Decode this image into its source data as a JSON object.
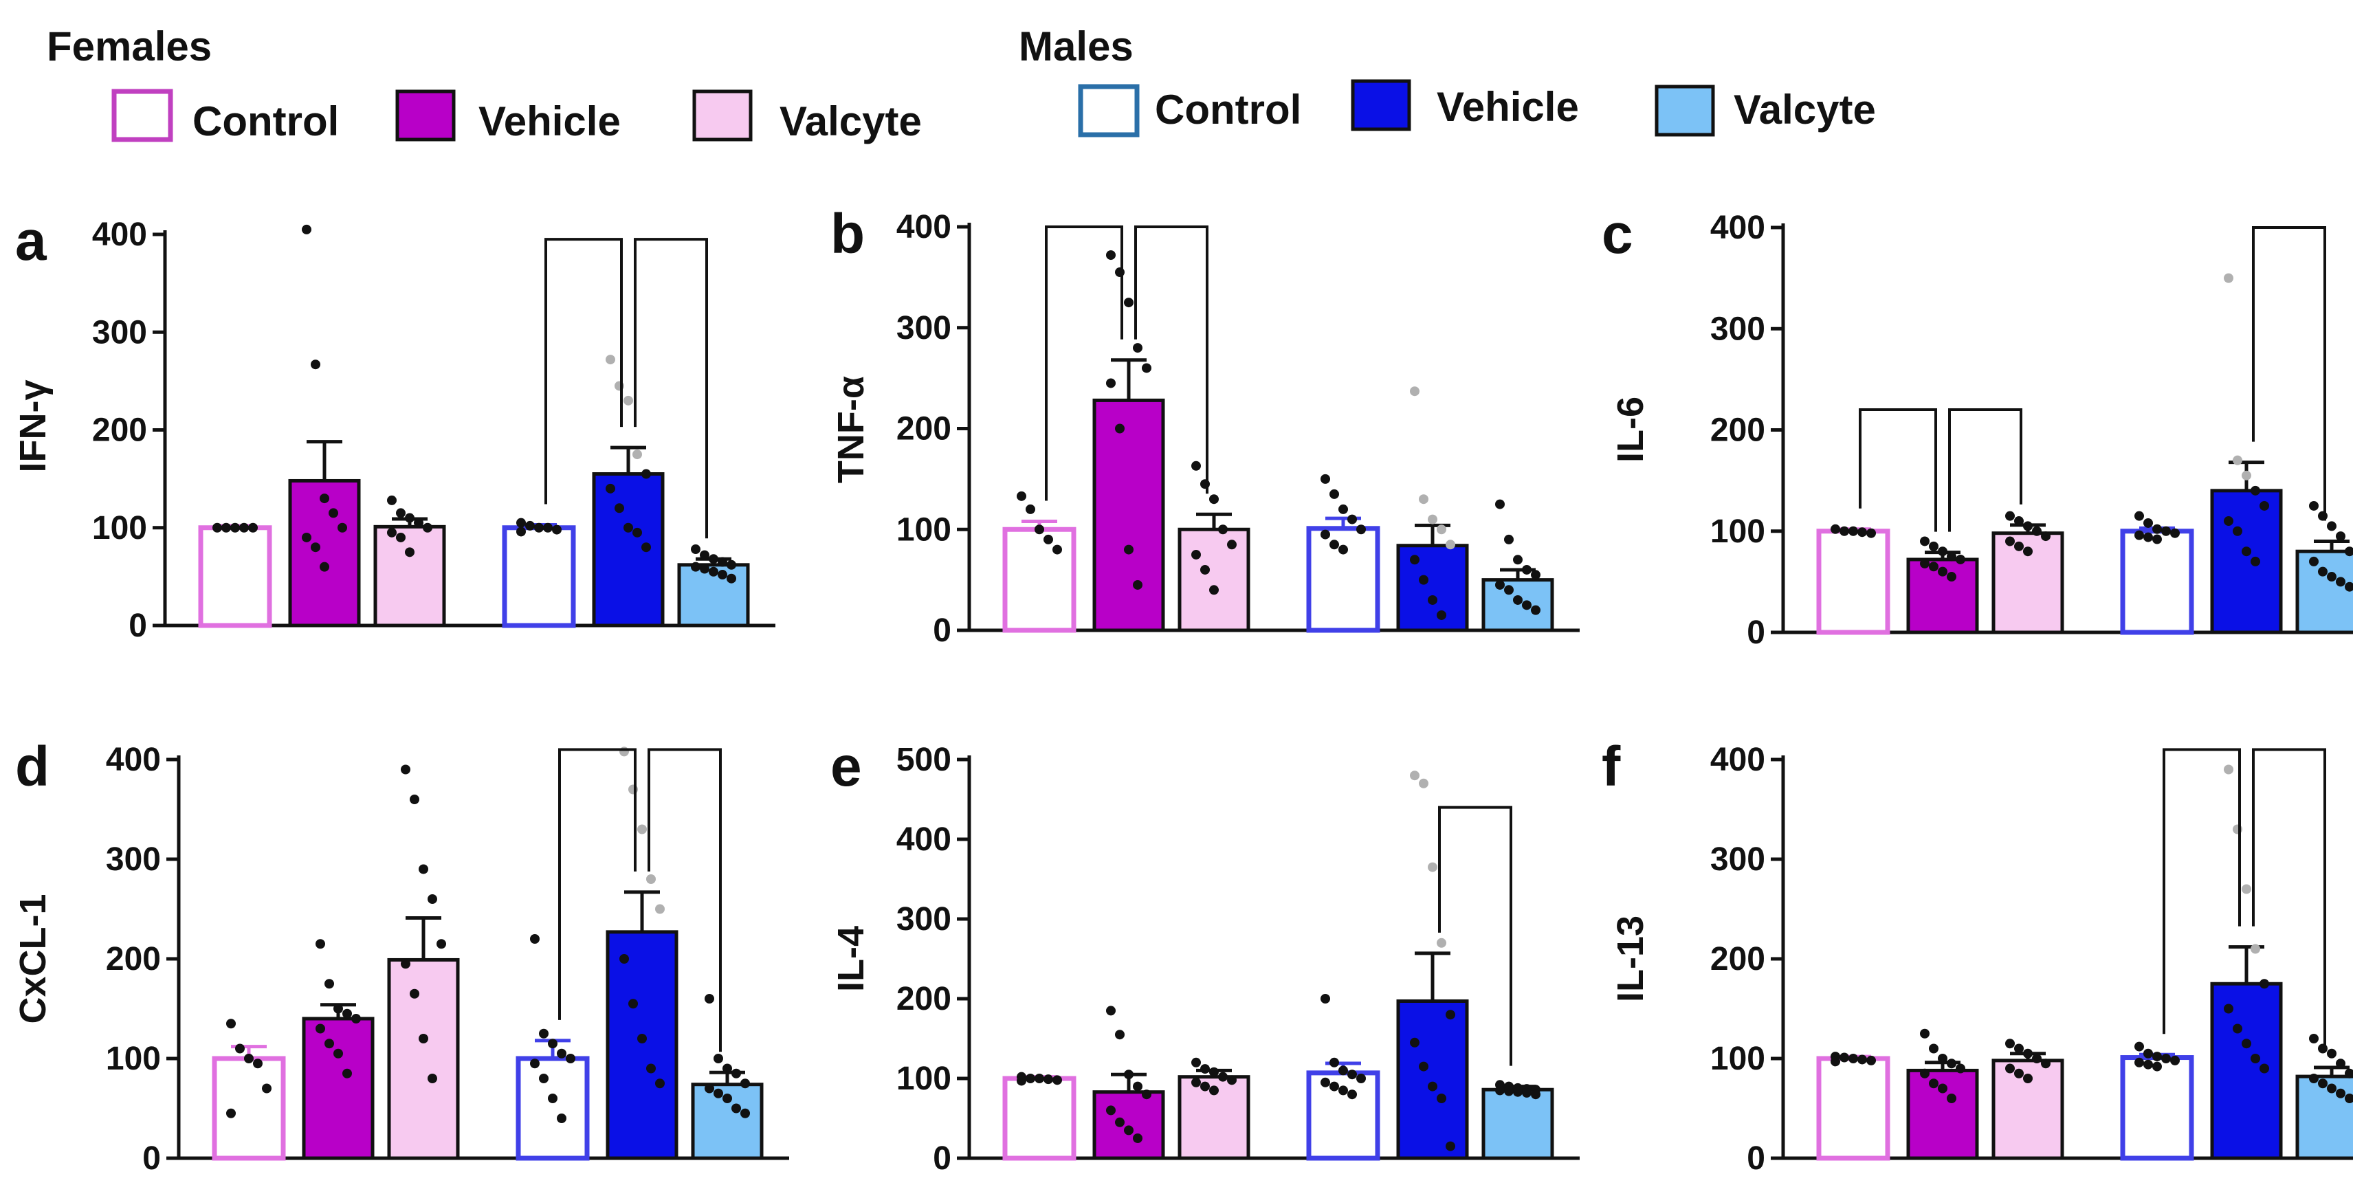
{
  "legend": {
    "females": {
      "title": "Females",
      "items": [
        {
          "label": "Control",
          "fill": "#ffffff",
          "stroke": "#c040c0"
        },
        {
          "label": "Vehicle",
          "fill": "#b800c8",
          "stroke": "#111111"
        },
        {
          "label": "Valcyte",
          "fill": "#f7caf0",
          "stroke": "#111111"
        }
      ]
    },
    "males": {
      "title": "Males",
      "items": [
        {
          "label": "Control",
          "fill": "#ffffff",
          "stroke": "#2a6fa8"
        },
        {
          "label": "Vehicle",
          "fill": "#0a10e6",
          "stroke": "#111111"
        },
        {
          "label": "Valcyte",
          "fill": "#7cc2f6",
          "stroke": "#111111"
        }
      ]
    }
  },
  "chart_data": [
    {
      "type": "bar",
      "panel": "a",
      "ylabel": "IFN-γ",
      "ylim": [
        0,
        400
      ],
      "yticks": [
        "0",
        "100",
        "200",
        "300",
        "400"
      ],
      "groups": [
        "Female Control",
        "Female Vehicle",
        "Female Valcyte",
        "Male Control",
        "Male Vehicle",
        "Male Valcyte"
      ],
      "values": [
        100,
        148,
        101,
        100,
        155,
        62
      ],
      "sem": [
        2,
        40,
        8,
        3,
        27,
        6
      ],
      "points": [
        [
          100,
          100,
          100,
          100,
          100
        ],
        [
          405,
          267,
          130,
          115,
          100,
          90,
          80,
          60
        ],
        [
          128,
          115,
          110,
          105,
          100,
          95,
          90,
          75
        ],
        [
          105,
          102,
          100,
          100,
          98,
          96
        ],
        [
          272,
          245,
          230,
          175,
          155,
          140,
          120,
          100,
          95,
          80
        ],
        [
          78,
          72,
          68,
          65,
          62,
          60,
          58,
          55,
          52,
          48
        ]
      ],
      "brackets": [
        {
          "from": 3,
          "to": 4,
          "y": 395
        },
        {
          "from": 4,
          "to": 5,
          "y": 395
        }
      ]
    },
    {
      "type": "bar",
      "panel": "b",
      "ylabel": "TNF-α",
      "ylim": [
        0,
        400
      ],
      "yticks": [
        "0",
        "100",
        "200",
        "300",
        "400"
      ],
      "groups": [
        "Female Control",
        "Female Vehicle",
        "Female Valcyte",
        "Male Control",
        "Male Vehicle",
        "Male Valcyte"
      ],
      "values": [
        100,
        228,
        100,
        101,
        84,
        50
      ],
      "sem": [
        8,
        40,
        15,
        10,
        20,
        10
      ],
      "points": [
        [
          133,
          120,
          100,
          90,
          80
        ],
        [
          372,
          355,
          325,
          280,
          260,
          245,
          200,
          80,
          45
        ],
        [
          163,
          145,
          130,
          100,
          85,
          75,
          60,
          40
        ],
        [
          150,
          135,
          120,
          110,
          100,
          95,
          85,
          80
        ],
        [
          237,
          130,
          110,
          100,
          85,
          70,
          50,
          30,
          15
        ],
        [
          125,
          90,
          70,
          60,
          55,
          45,
          40,
          30,
          25,
          20
        ]
      ],
      "brackets": [
        {
          "from": 0,
          "to": 1,
          "y": 400
        },
        {
          "from": 1,
          "to": 2,
          "y": 400
        }
      ]
    },
    {
      "type": "bar",
      "panel": "c",
      "ylabel": "IL-6",
      "ylim": [
        0,
        400
      ],
      "yticks": [
        "0",
        "100",
        "200",
        "300",
        "400"
      ],
      "groups": [
        "Female Control",
        "Female Vehicle",
        "Female Valcyte",
        "Male Control",
        "Male Vehicle",
        "Male Valcyte"
      ],
      "values": [
        100,
        72,
        98,
        100,
        140,
        80
      ],
      "sem": [
        2,
        7,
        8,
        3,
        28,
        10
      ],
      "points": [
        [
          102,
          100,
          100,
          99,
          98
        ],
        [
          90,
          85,
          80,
          75,
          72,
          68,
          65,
          60,
          55
        ],
        [
          115,
          110,
          105,
          100,
          95,
          90,
          85,
          80
        ],
        [
          115,
          108,
          102,
          100,
          98,
          96,
          94,
          92
        ],
        [
          350,
          170,
          155,
          140,
          125,
          110,
          100,
          80,
          70
        ],
        [
          125,
          115,
          105,
          95,
          80,
          70,
          60,
          55,
          50,
          45
        ]
      ],
      "brackets": [
        {
          "from": 0,
          "to": 1,
          "y": 220
        },
        {
          "from": 1,
          "to": 2,
          "y": 220
        },
        {
          "from": 4,
          "to": 5,
          "y": 400
        }
      ]
    },
    {
      "type": "bar",
      "panel": "d",
      "ylabel": "CxCL-1",
      "ylim": [
        0,
        400
      ],
      "yticks": [
        "0",
        "100",
        "200",
        "300",
        "400"
      ],
      "groups": [
        "Female Control",
        "Female Vehicle",
        "Female Valcyte",
        "Male Control",
        "Male Vehicle",
        "Male Valcyte"
      ],
      "values": [
        100,
        140,
        199,
        100,
        227,
        74
      ],
      "sem": [
        12,
        14,
        42,
        18,
        40,
        12
      ],
      "points": [
        [
          135,
          110,
          100,
          95,
          70,
          45
        ],
        [
          215,
          175,
          150,
          145,
          140,
          130,
          115,
          105,
          85
        ],
        [
          390,
          360,
          290,
          260,
          215,
          195,
          165,
          120,
          80
        ],
        [
          220,
          125,
          115,
          105,
          100,
          95,
          80,
          60,
          40
        ],
        [
          408,
          370,
          330,
          280,
          250,
          200,
          155,
          120,
          90,
          75
        ],
        [
          160,
          100,
          90,
          85,
          75,
          70,
          65,
          60,
          50,
          45
        ]
      ],
      "brackets": [
        {
          "from": 3,
          "to": 4,
          "y": 410
        },
        {
          "from": 4,
          "to": 5,
          "y": 410
        }
      ]
    },
    {
      "type": "bar",
      "panel": "e",
      "ylabel": "IL-4",
      "ylim": [
        0,
        500
      ],
      "yticks": [
        "0",
        "100",
        "200",
        "300",
        "400",
        "500"
      ],
      "groups": [
        "Female Control",
        "Female Vehicle",
        "Female Valcyte",
        "Male Control",
        "Male Vehicle",
        "Male Valcyte"
      ],
      "values": [
        100,
        83,
        102,
        107,
        197,
        86
      ],
      "sem": [
        2,
        22,
        8,
        12,
        60,
        4
      ],
      "points": [
        [
          102,
          100,
          100,
          99,
          98,
          97
        ],
        [
          185,
          155,
          105,
          90,
          80,
          60,
          45,
          35,
          25
        ],
        [
          120,
          112,
          108,
          102,
          98,
          95,
          90,
          85
        ],
        [
          200,
          120,
          110,
          105,
          100,
          95,
          90,
          85,
          80
        ],
        [
          480,
          470,
          365,
          270,
          180,
          145,
          115,
          90,
          75,
          15
        ],
        [
          92,
          90,
          88,
          87,
          86,
          85,
          84,
          83,
          82,
          80
        ]
      ],
      "brackets": [
        {
          "from": 4,
          "to": 5,
          "y": 440
        }
      ]
    },
    {
      "type": "bar",
      "panel": "f",
      "ylabel": "IL-13",
      "ylim": [
        0,
        400
      ],
      "yticks": [
        "0",
        "100",
        "200",
        "300",
        "400"
      ],
      "groups": [
        "Female Control",
        "Female Vehicle",
        "Female Valcyte",
        "Male Control",
        "Male Vehicle",
        "Male Valcyte"
      ],
      "values": [
        100,
        88,
        98,
        101,
        175,
        82
      ],
      "sem": [
        2,
        8,
        7,
        3,
        37,
        9
      ],
      "points": [
        [
          102,
          101,
          100,
          99,
          98,
          97
        ],
        [
          125,
          110,
          100,
          95,
          90,
          85,
          75,
          70,
          60
        ],
        [
          115,
          110,
          105,
          100,
          95,
          90,
          85,
          80
        ],
        [
          112,
          105,
          102,
          100,
          98,
          96,
          94,
          92
        ],
        [
          390,
          330,
          270,
          210,
          175,
          150,
          130,
          115,
          100,
          90
        ],
        [
          120,
          110,
          105,
          95,
          85,
          80,
          75,
          70,
          65,
          60
        ]
      ],
      "brackets": [
        {
          "from": 3,
          "to": 4,
          "y": 410
        },
        {
          "from": 4,
          "to": 5,
          "y": 410
        }
      ]
    }
  ]
}
